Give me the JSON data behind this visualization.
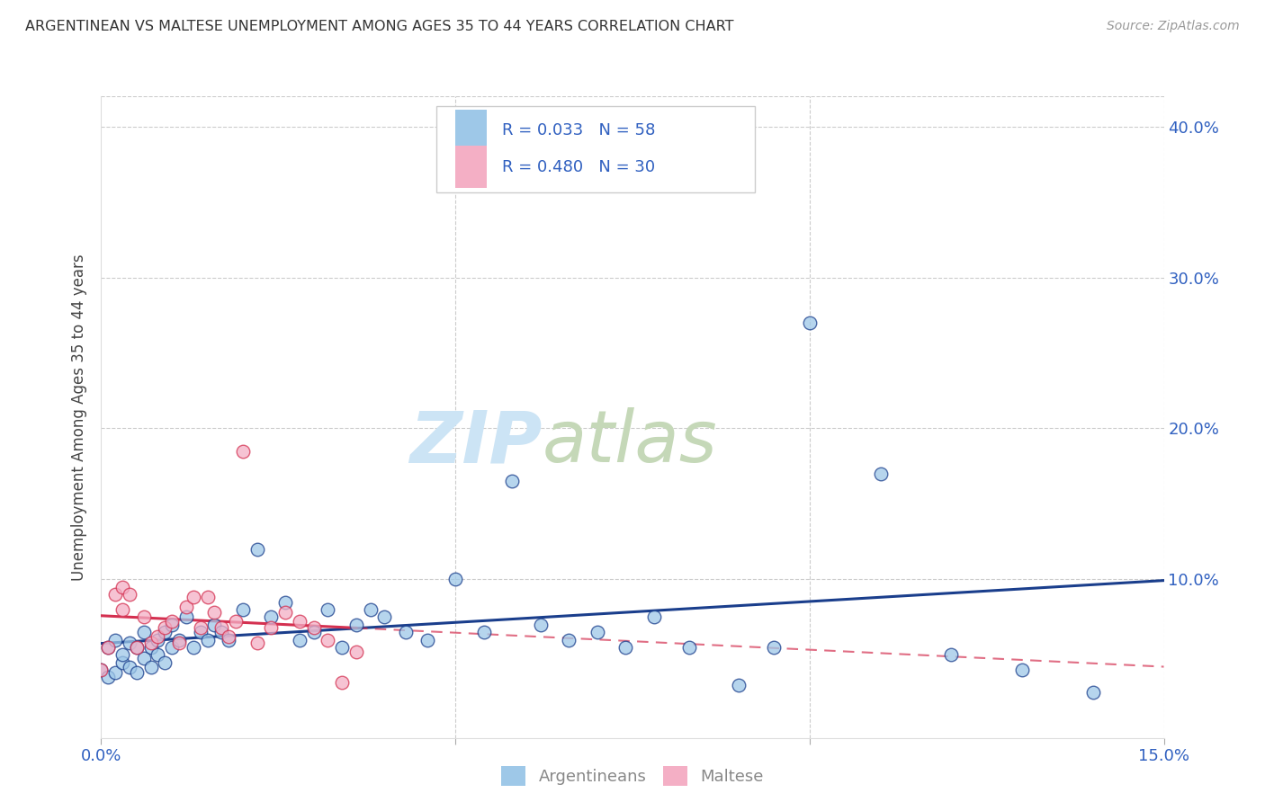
{
  "title": "ARGENTINEAN VS MALTESE UNEMPLOYMENT AMONG AGES 35 TO 44 YEARS CORRELATION CHART",
  "source": "Source: ZipAtlas.com",
  "ylabel": "Unemployment Among Ages 35 to 44 years",
  "xlim": [
    0.0,
    0.15
  ],
  "ylim": [
    -0.005,
    0.42
  ],
  "yticks": [
    0.0,
    0.1,
    0.2,
    0.3,
    0.4
  ],
  "yticklabels": [
    "",
    "10.0%",
    "20.0%",
    "30.0%",
    "40.0%"
  ],
  "xticks": [
    0.0,
    0.05,
    0.1,
    0.15
  ],
  "xticklabels": [
    "0.0%",
    "",
    "",
    "15.0%"
  ],
  "legend_argentinean": "Argentineans",
  "legend_maltese": "Maltese",
  "R_argentinean": 0.033,
  "N_argentinean": 58,
  "R_maltese": 0.48,
  "N_maltese": 30,
  "color_argentinean": "#9ec8e8",
  "color_maltese": "#f4afc5",
  "color_line_argentinean": "#1a3e8c",
  "color_line_maltese": "#d43050",
  "color_text_blue": "#3060c0",
  "color_text_gray": "#aaaaaa",
  "watermark_zip_color": "#cce4f5",
  "watermark_atlas_color": "#c5d8b8",
  "argentinean_x": [
    0.0,
    0.001,
    0.001,
    0.002,
    0.002,
    0.003,
    0.003,
    0.004,
    0.004,
    0.005,
    0.005,
    0.006,
    0.006,
    0.007,
    0.007,
    0.008,
    0.008,
    0.009,
    0.009,
    0.01,
    0.01,
    0.011,
    0.012,
    0.013,
    0.014,
    0.015,
    0.016,
    0.017,
    0.018,
    0.02,
    0.022,
    0.024,
    0.026,
    0.028,
    0.03,
    0.032,
    0.034,
    0.036,
    0.038,
    0.04,
    0.043,
    0.046,
    0.05,
    0.054,
    0.058,
    0.062,
    0.066,
    0.07,
    0.074,
    0.078,
    0.083,
    0.09,
    0.095,
    0.1,
    0.11,
    0.12,
    0.13,
    0.14
  ],
  "argentinean_y": [
    0.04,
    0.035,
    0.055,
    0.038,
    0.06,
    0.045,
    0.05,
    0.042,
    0.058,
    0.038,
    0.055,
    0.048,
    0.065,
    0.042,
    0.055,
    0.05,
    0.06,
    0.045,
    0.065,
    0.055,
    0.07,
    0.06,
    0.075,
    0.055,
    0.065,
    0.06,
    0.07,
    0.065,
    0.06,
    0.08,
    0.12,
    0.075,
    0.085,
    0.06,
    0.065,
    0.08,
    0.055,
    0.07,
    0.08,
    0.075,
    0.065,
    0.06,
    0.1,
    0.065,
    0.165,
    0.07,
    0.06,
    0.065,
    0.055,
    0.075,
    0.055,
    0.03,
    0.055,
    0.27,
    0.17,
    0.05,
    0.04,
    0.025
  ],
  "maltese_x": [
    0.0,
    0.001,
    0.002,
    0.003,
    0.003,
    0.004,
    0.005,
    0.006,
    0.007,
    0.008,
    0.009,
    0.01,
    0.011,
    0.012,
    0.013,
    0.014,
    0.015,
    0.016,
    0.017,
    0.018,
    0.019,
    0.02,
    0.022,
    0.024,
    0.026,
    0.028,
    0.03,
    0.032,
    0.034,
    0.036
  ],
  "maltese_y": [
    0.04,
    0.055,
    0.09,
    0.08,
    0.095,
    0.09,
    0.055,
    0.075,
    0.058,
    0.062,
    0.068,
    0.072,
    0.058,
    0.082,
    0.088,
    0.068,
    0.088,
    0.078,
    0.068,
    0.062,
    0.072,
    0.185,
    0.058,
    0.068,
    0.078,
    0.072,
    0.068,
    0.06,
    0.032,
    0.052
  ]
}
